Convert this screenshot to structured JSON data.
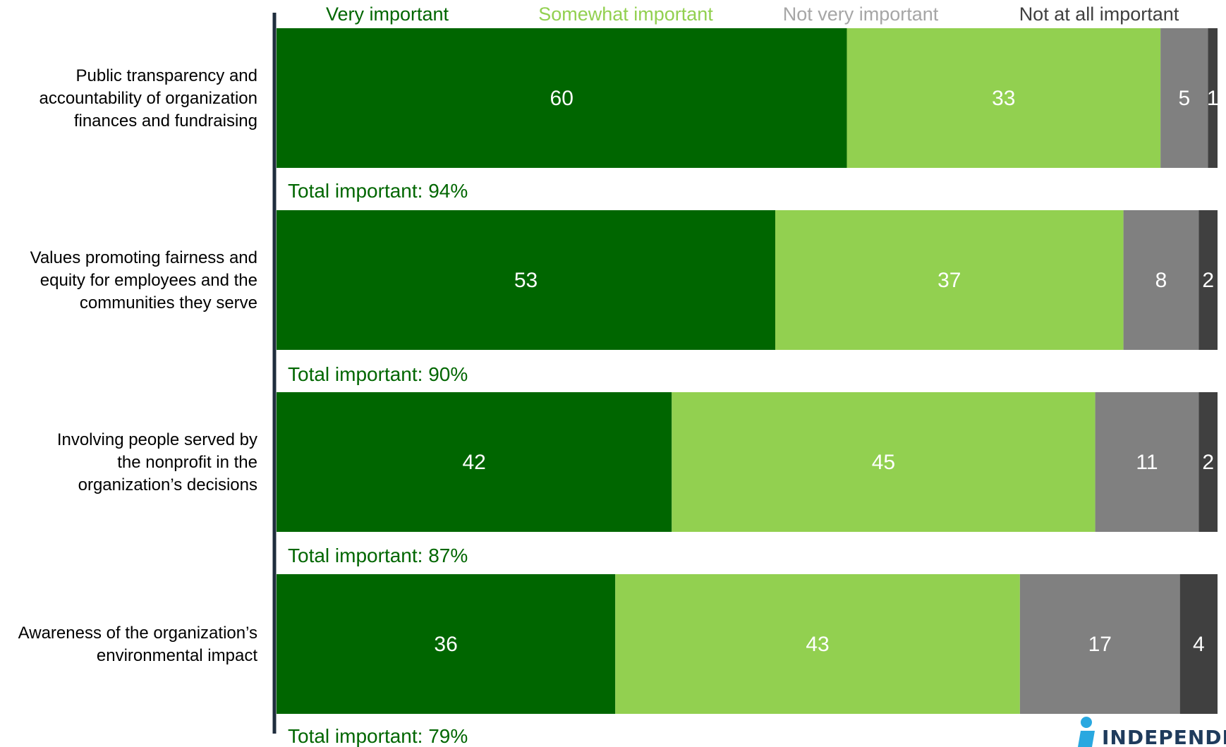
{
  "chart_data": {
    "type": "bar",
    "orientation": "horizontal",
    "stacked": true,
    "categories": [
      "Public transparency and accountability of organization finances and fundraising",
      "Values promoting fairness and equity for employees and the communities they serve",
      "Involving people served by the nonprofit in the organization’s decisions",
      "Awareness of the organization’s environmental impact"
    ],
    "category_lines": [
      [
        "Public transparency and",
        "accountability of organization",
        "finances and fundraising"
      ],
      [
        "Values promoting fairness and",
        "equity for employees and the",
        "communities they serve"
      ],
      [
        "Involving people served by",
        "the nonprofit in the",
        "organization’s decisions"
      ],
      [
        "Awareness of the organization’s",
        "environmental impact"
      ]
    ],
    "series": [
      {
        "name": "Very important",
        "values": [
          60,
          53,
          42,
          36
        ],
        "color": "#006600",
        "legend_color": "#006600",
        "label_color": "#ffffff"
      },
      {
        "name": "Somewhat important",
        "values": [
          33,
          37,
          45,
          43
        ],
        "color": "#92d050",
        "legend_color": "#92d050",
        "label_color": "#ffffff"
      },
      {
        "name": "Not very important",
        "values": [
          5,
          8,
          11,
          17
        ],
        "color": "#808080",
        "legend_color": "#a6a6a6",
        "label_color": "#ffffff"
      },
      {
        "name": "Not at all important",
        "values": [
          1,
          2,
          2,
          4
        ],
        "color": "#404040",
        "legend_color": "#404040",
        "label_color": "#ffffff"
      }
    ],
    "totals": [
      "Total important: 94%",
      "Total important: 90%",
      "Total important: 87%",
      "Total important: 79%"
    ],
    "total_color": "#006600",
    "legend_position": "top",
    "grid": false,
    "title": "",
    "xlabel": "",
    "ylabel": ""
  },
  "logo": {
    "text": "INDEPENDE",
    "color": "#1f3b5c",
    "icon_color": "#29a8e0"
  }
}
